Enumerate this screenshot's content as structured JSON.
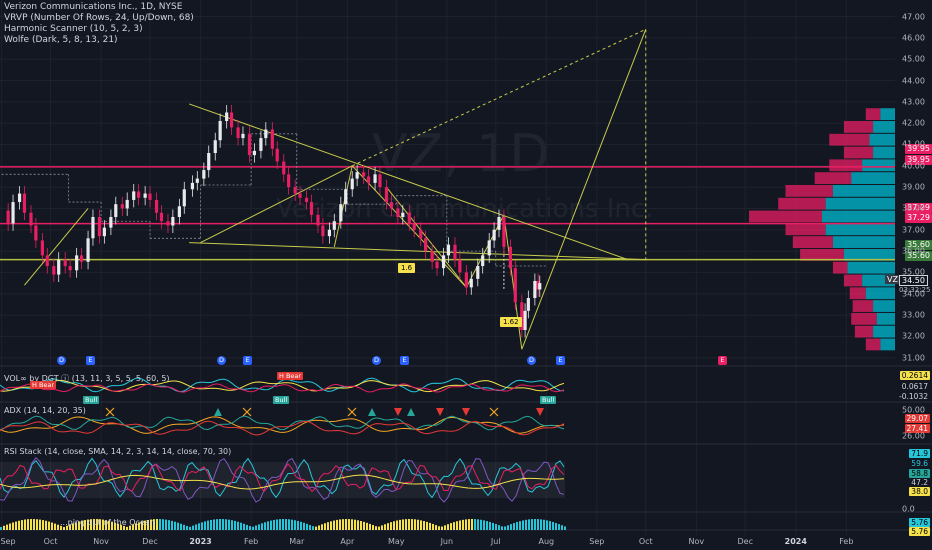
{
  "legend": {
    "symbol": "Verizon Communications Inc., 1D, NYSE",
    "indicators": [
      "VRVP (Number Of Rows, 24, Up/Down, 68)",
      "Harmonic Scanner (10, 5, 2, 3)",
      "Wolfe (Dark, 5, 8, 13, 21)"
    ]
  },
  "watermark": {
    "ticker": "VZ, 1D",
    "company": "Verizon Communications Inc."
  },
  "price_badges": [
    {
      "label": "39.95",
      "color": "#e91e63"
    },
    {
      "label": "39.95",
      "color": "#e91e63"
    },
    {
      "label": "37.29",
      "color": "#e91e63"
    },
    {
      "label": "37.29",
      "color": "#e91e63"
    },
    {
      "label": "35.60",
      "color": "#3a7a3a"
    },
    {
      "label": "35.60",
      "color": "#3a7a3a"
    }
  ],
  "last_price": {
    "ticker": "VZ",
    "price": "34.50",
    "countdown": "03:32:25"
  },
  "fib_labels": [
    "1.6",
    "1.62"
  ],
  "event_markers": [
    {
      "letter": "D",
      "type": "dividend"
    },
    {
      "letter": "E",
      "type": "earnings"
    },
    {
      "letter": "D",
      "type": "dividend"
    },
    {
      "letter": "E",
      "type": "earnings"
    },
    {
      "letter": "D",
      "type": "dividend"
    },
    {
      "letter": "E",
      "type": "earnings"
    },
    {
      "letter": "D",
      "type": "dividend"
    },
    {
      "letter": "E",
      "type": "earnings"
    },
    {
      "letter": "E",
      "type": "earnings-future"
    }
  ],
  "indicators": {
    "vol": {
      "title": "VOL∞ by DGT ⓘ (13, 11, 3, 5, 5, 5, 60, 5)",
      "badges": [
        "0.2614",
        "0.0617",
        "-0.1032"
      ],
      "tags": [
        "H Bear",
        "H Bear",
        "Bull",
        "Bull",
        "Bull"
      ]
    },
    "adx": {
      "title": "ADX (14, 14, 20, 35)",
      "badges": [
        "29.07",
        "27.41"
      ],
      "ticks": [
        "50.00",
        "26.00"
      ]
    },
    "rsi": {
      "title": "RSI Stack (14, close, SMA, 14, 2, 3, 14, 14, close, 70, 30)",
      "badges": [
        "71.9",
        "59.6",
        "58.8",
        "47.2",
        "38.0"
      ],
      "tick": "0.0"
    },
    "bottom": {
      "title": "...ping out of the Ocean",
      "badges": [
        "5.76",
        "5.76"
      ]
    }
  },
  "chart_data": {
    "type": "candlestick",
    "title": "Verizon Communications Inc., 1D, NYSE",
    "x_axis_labels": [
      "Sep",
      "Oct",
      "Nov",
      "Dec",
      "2023",
      "Feb",
      "Mar",
      "Apr",
      "May",
      "Jun",
      "Jul",
      "Aug",
      "Sep",
      "Oct",
      "Nov",
      "Dec",
      "2024",
      "Feb"
    ],
    "y_axis_labels": [
      "31.00",
      "32.00",
      "33.00",
      "34.00",
      "35.00",
      "36.00",
      "37.00",
      "38.00",
      "39.00",
      "40.00",
      "41.00",
      "42.00",
      "43.00",
      "44.00",
      "45.00",
      "46.00",
      "47.00"
    ],
    "ylim": [
      30.8,
      47.4
    ],
    "close_path": [
      [
        "2022-09-01",
        37.9
      ],
      [
        "2022-09-05",
        37.3
      ],
      [
        "2022-09-08",
        38.3
      ],
      [
        "2022-09-12",
        38.7
      ],
      [
        "2022-09-15",
        37.8
      ],
      [
        "2022-09-19",
        37.2
      ],
      [
        "2022-09-22",
        36.5
      ],
      [
        "2022-09-26",
        35.8
      ],
      [
        "2022-09-29",
        35.3
      ],
      [
        "2022-10-03",
        34.9
      ],
      [
        "2022-10-06",
        35.6
      ],
      [
        "2022-10-10",
        35.3
      ],
      [
        "2022-10-13",
        35.1
      ],
      [
        "2022-10-17",
        35.8
      ],
      [
        "2022-10-20",
        35.5
      ],
      [
        "2022-10-24",
        36.6
      ],
      [
        "2022-10-27",
        37.6
      ],
      [
        "2022-10-31",
        36.7
      ],
      [
        "2022-11-03",
        37.1
      ],
      [
        "2022-11-07",
        37.6
      ],
      [
        "2022-11-10",
        38.2
      ],
      [
        "2022-11-14",
        38.0
      ],
      [
        "2022-11-17",
        38.4
      ],
      [
        "2022-11-21",
        38.8
      ],
      [
        "2022-11-24",
        38.5
      ],
      [
        "2022-11-28",
        38.7
      ],
      [
        "2022-12-01",
        38.4
      ],
      [
        "2022-12-05",
        37.8
      ],
      [
        "2022-12-08",
        37.4
      ],
      [
        "2022-12-12",
        37.2
      ],
      [
        "2022-12-15",
        37.6
      ],
      [
        "2022-12-19",
        38.1
      ],
      [
        "2022-12-22",
        38.9
      ],
      [
        "2022-12-27",
        39.2
      ],
      [
        "2022-12-30",
        39.4
      ],
      [
        "2023-01-03",
        39.8
      ],
      [
        "2023-01-06",
        40.6
      ],
      [
        "2023-01-10",
        41.2
      ],
      [
        "2023-01-13",
        42.1
      ],
      [
        "2023-01-17",
        42.5
      ],
      [
        "2023-01-20",
        41.8
      ],
      [
        "2023-01-24",
        41.3
      ],
      [
        "2023-01-27",
        41.5
      ],
      [
        "2023-01-31",
        40.5
      ],
      [
        "2023-02-03",
        40.7
      ],
      [
        "2023-02-07",
        41.3
      ],
      [
        "2023-02-10",
        41.7
      ],
      [
        "2023-02-14",
        40.8
      ],
      [
        "2023-02-17",
        40.2
      ],
      [
        "2023-02-21",
        39.6
      ],
      [
        "2023-02-24",
        39.0
      ],
      [
        "2023-02-28",
        38.7
      ],
      [
        "2023-03-03",
        38.5
      ],
      [
        "2023-03-07",
        38.3
      ],
      [
        "2023-03-10",
        37.7
      ],
      [
        "2023-03-14",
        37.2
      ],
      [
        "2023-03-17",
        36.7
      ],
      [
        "2023-03-21",
        37.0
      ],
      [
        "2023-03-24",
        37.4
      ],
      [
        "2023-03-28",
        38.2
      ],
      [
        "2023-03-31",
        38.9
      ],
      [
        "2023-04-04",
        39.4
      ],
      [
        "2023-04-07",
        39.7
      ],
      [
        "2023-04-11",
        39.5
      ],
      [
        "2023-04-14",
        39.2
      ],
      [
        "2023-04-18",
        39.6
      ],
      [
        "2023-04-21",
        39.0
      ],
      [
        "2023-04-25",
        38.3
      ],
      [
        "2023-04-28",
        38.0
      ],
      [
        "2023-05-02",
        37.6
      ],
      [
        "2023-05-05",
        37.8
      ],
      [
        "2023-05-09",
        37.3
      ],
      [
        "2023-05-12",
        37.0
      ],
      [
        "2023-05-16",
        36.6
      ],
      [
        "2023-05-19",
        36.0
      ],
      [
        "2023-05-23",
        35.5
      ],
      [
        "2023-05-26",
        35.2
      ],
      [
        "2023-05-30",
        35.8
      ],
      [
        "2023-06-02",
        36.3
      ],
      [
        "2023-06-06",
        35.6
      ],
      [
        "2023-06-09",
        35.0
      ],
      [
        "2023-06-13",
        34.3
      ],
      [
        "2023-06-16",
        34.7
      ],
      [
        "2023-06-20",
        35.3
      ],
      [
        "2023-06-23",
        35.8
      ],
      [
        "2023-06-27",
        36.5
      ],
      [
        "2023-06-30",
        37.0
      ],
      [
        "2023-07-03",
        37.6
      ],
      [
        "2023-07-06",
        36.2
      ],
      [
        "2023-07-10",
        35.2
      ],
      [
        "2023-07-13",
        33.6
      ],
      [
        "2023-07-17",
        32.3
      ],
      [
        "2023-07-19",
        33.2
      ],
      [
        "2023-07-21",
        33.8
      ],
      [
        "2023-07-25",
        34.6
      ],
      [
        "2023-07-27",
        34.2
      ],
      [
        "2023-07-28",
        34.5
      ]
    ],
    "horizontal_levels": [
      39.95,
      37.29,
      35.6
    ],
    "harmonic_projection": {
      "from": [
        "2023-07-17",
        31.4
      ],
      "to": [
        "2023-10-01",
        46.4
      ]
    },
    "volume_profile_levels": [
      "31.00",
      "47.00"
    ]
  }
}
